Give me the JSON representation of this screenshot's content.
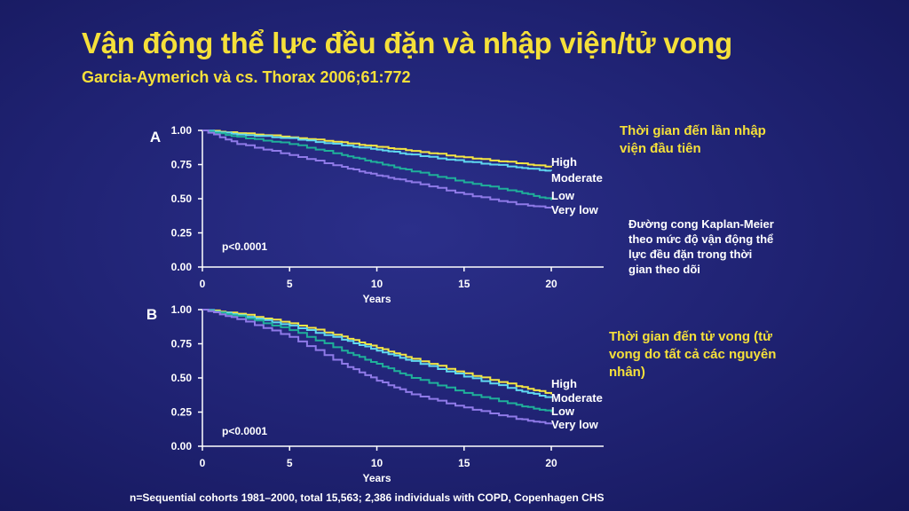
{
  "title": "Vận động thể lực đều đặn và nhập viện/tử vong",
  "subtitle": "Garcia-Aymerich và cs. Thorax 2006;61:772",
  "notes": {
    "panel_a": "Thời gian đến lần nhập viện đầu tiên",
    "middle": "Đường cong Kaplan-Meier theo mức độ vận động thể lực đều đặn trong thời gian theo dõi",
    "panel_b": "Thời gian đến tử vong (tử vong do tất cả các nguyên nhân)"
  },
  "footnote": "n=Sequential cohorts 1981–2000, total 15,563; 2,386 individuals with COPD, Copenhagen CHS",
  "colors": {
    "high": "#f5e642",
    "moderate": "#5fd8f0",
    "low": "#1fb09a",
    "very_low": "#8f7ae8",
    "axis": "#ffffff"
  },
  "chart_data": [
    {
      "type": "line",
      "panel_label": "A",
      "xlabel": "Years",
      "ylabel": "",
      "xlim": [
        0,
        23
      ],
      "ylim": [
        0,
        1
      ],
      "x_ticks": [
        "0",
        "5",
        "10",
        "15",
        "20"
      ],
      "y_ticks": [
        "0.00",
        "0.25",
        "0.50",
        "0.75",
        "1.00"
      ],
      "annotation": "p<0.0001",
      "series": [
        {
          "name": "High",
          "x": [
            0,
            2,
            5,
            8,
            10,
            12,
            15,
            18,
            20
          ],
          "values": [
            1.0,
            0.98,
            0.95,
            0.91,
            0.88,
            0.85,
            0.8,
            0.76,
            0.73
          ]
        },
        {
          "name": "Moderate",
          "x": [
            0,
            2,
            5,
            8,
            10,
            12,
            15,
            18,
            20
          ],
          "values": [
            1.0,
            0.97,
            0.94,
            0.89,
            0.86,
            0.82,
            0.77,
            0.73,
            0.7
          ]
        },
        {
          "name": "Low",
          "x": [
            0,
            2,
            5,
            8,
            10,
            12,
            15,
            18,
            20
          ],
          "values": [
            1.0,
            0.95,
            0.9,
            0.82,
            0.76,
            0.7,
            0.62,
            0.55,
            0.49
          ]
        },
        {
          "name": "Very low",
          "x": [
            0,
            2,
            5,
            8,
            10,
            12,
            15,
            18,
            20
          ],
          "values": [
            1.0,
            0.9,
            0.82,
            0.73,
            0.67,
            0.62,
            0.53,
            0.46,
            0.43
          ]
        }
      ]
    },
    {
      "type": "line",
      "panel_label": "B",
      "xlabel": "Years",
      "ylabel": "",
      "xlim": [
        0,
        23
      ],
      "ylim": [
        0,
        1
      ],
      "x_ticks": [
        "0",
        "5",
        "10",
        "15",
        "20"
      ],
      "y_ticks": [
        "0.00",
        "0.25",
        "0.50",
        "0.75",
        "1.00"
      ],
      "annotation": "p<0.0001",
      "series": [
        {
          "name": "High",
          "x": [
            0,
            2,
            5,
            8,
            10,
            12,
            15,
            18,
            20
          ],
          "values": [
            1.0,
            0.97,
            0.9,
            0.8,
            0.72,
            0.64,
            0.53,
            0.44,
            0.38
          ]
        },
        {
          "name": "Moderate",
          "x": [
            0,
            2,
            5,
            8,
            10,
            12,
            15,
            18,
            20
          ],
          "values": [
            1.0,
            0.96,
            0.88,
            0.78,
            0.7,
            0.62,
            0.51,
            0.41,
            0.35
          ]
        },
        {
          "name": "Low",
          "x": [
            0,
            2,
            5,
            8,
            10,
            12,
            15,
            18,
            20
          ],
          "values": [
            1.0,
            0.95,
            0.85,
            0.7,
            0.6,
            0.5,
            0.39,
            0.3,
            0.25
          ]
        },
        {
          "name": "Very low",
          "x": [
            0,
            2,
            5,
            8,
            10,
            12,
            15,
            18,
            20
          ],
          "values": [
            1.0,
            0.93,
            0.8,
            0.6,
            0.48,
            0.38,
            0.28,
            0.2,
            0.16
          ]
        }
      ]
    }
  ]
}
